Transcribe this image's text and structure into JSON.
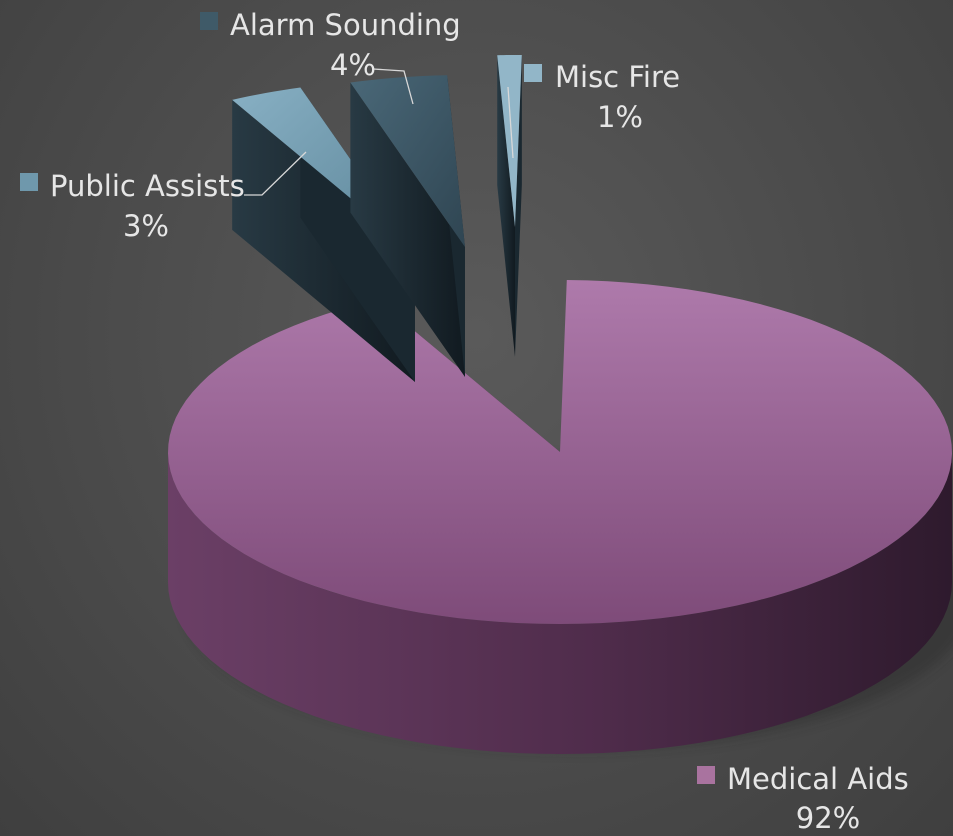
{
  "chart_data": {
    "type": "pie",
    "title": "",
    "legend": "none",
    "categories": [
      "Medical Aids",
      "Public Assists",
      "Alarm Sounding",
      "Misc Fire"
    ],
    "values": [
      92,
      3,
      4,
      1
    ],
    "percent_labels": [
      "92%",
      "3%",
      "4%",
      "1%"
    ],
    "colors": [
      "#a9739f",
      "#6f98ac",
      "#3f5a68",
      "#92b6c8"
    ]
  }
}
